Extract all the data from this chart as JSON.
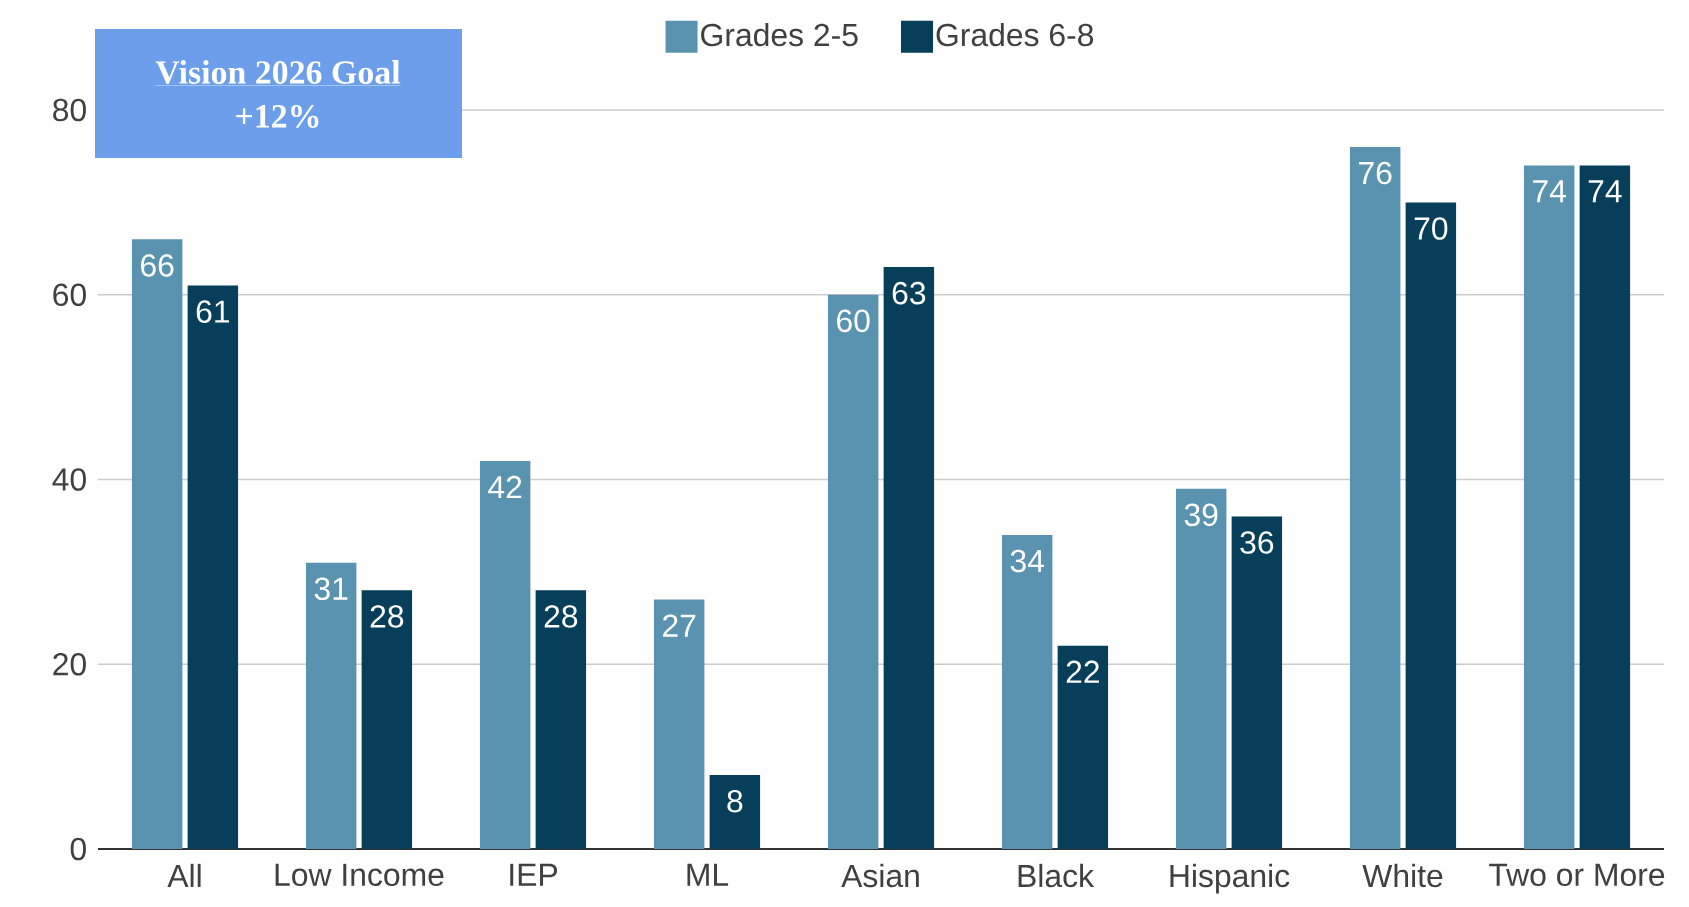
{
  "chart_data": {
    "type": "bar",
    "categories": [
      "All",
      "Low Income",
      "IEP",
      "ML",
      "Asian",
      "Black",
      "Hispanic",
      "White",
      "Two or More"
    ],
    "series": [
      {
        "name": "Grades 2-5",
        "color": "#5a93b0",
        "values": [
          66,
          31,
          42,
          27,
          60,
          34,
          39,
          76,
          74
        ]
      },
      {
        "name": "Grades 6-8",
        "color": "#073f5a",
        "values": [
          61,
          28,
          28,
          8,
          63,
          22,
          36,
          70,
          74
        ]
      }
    ],
    "ylim": [
      0,
      80
    ],
    "yticks": [
      0,
      20,
      40,
      60,
      80
    ],
    "grid": "y",
    "legend": "top",
    "data_labels": true,
    "annotations": [
      "Vision 2026 Goal",
      "+12%"
    ]
  }
}
